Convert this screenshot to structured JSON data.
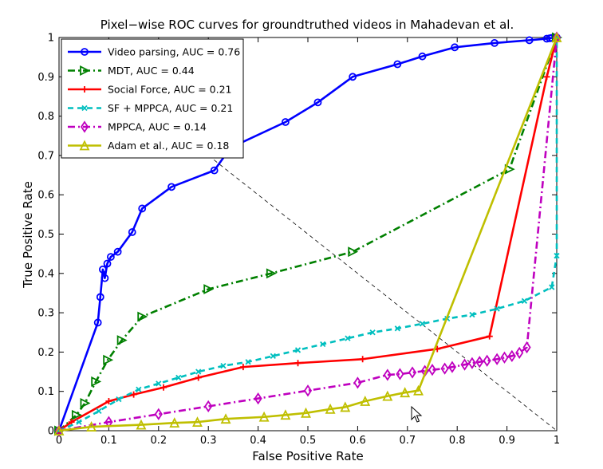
{
  "chart_data": {
    "type": "line",
    "title": "Pixel−wise ROC curves for groundtruthed videos in Mahadevan et al.",
    "xlabel": "False Positive Rate",
    "ylabel": "True Positive Rate",
    "xlim": [
      0,
      1
    ],
    "ylim": [
      0,
      1
    ],
    "xticks": [
      "0",
      "0.1",
      "0.2",
      "0.3",
      "0.4",
      "0.5",
      "0.6",
      "0.7",
      "0.8",
      "0.9",
      "1"
    ],
    "yticks": [
      "0",
      "0.1",
      "0.2",
      "0.3",
      "0.4",
      "0.5",
      "0.6",
      "0.7",
      "0.8",
      "0.9",
      "1"
    ],
    "grid": false,
    "legend_position": "top-left",
    "diagonal_reference": {
      "from": [
        0.3,
        0.7
      ],
      "to": [
        1.0,
        0.0
      ],
      "color": "#000000",
      "style": "dashed"
    },
    "series": [
      {
        "name": "Video parsing, AUC = 0.76",
        "color": "#0000ff",
        "style": "solid",
        "marker": "circle",
        "x": [
          0,
          0.078,
          0.083,
          0.088,
          0.092,
          0.097,
          0.104,
          0.118,
          0.147,
          0.167,
          0.226,
          0.312,
          0.345,
          0.455,
          0.52,
          0.59,
          0.68,
          0.73,
          0.795,
          0.875,
          0.945,
          0.98,
          0.986,
          0.99,
          1.0
        ],
        "y": [
          0,
          0.275,
          0.34,
          0.41,
          0.388,
          0.425,
          0.442,
          0.455,
          0.505,
          0.565,
          0.62,
          0.662,
          0.72,
          0.785,
          0.835,
          0.9,
          0.932,
          0.952,
          0.975,
          0.986,
          0.993,
          0.997,
          0.998,
          0.999,
          1.0
        ]
      },
      {
        "name": "MDT, AUC = 0.44",
        "color": "#008000",
        "style": "dashdot",
        "marker": "triangle-right",
        "x": [
          0,
          0.035,
          0.052,
          0.074,
          0.098,
          0.126,
          0.167,
          0.3,
          0.426,
          0.59,
          0.905,
          1.0
        ],
        "y": [
          0,
          0.04,
          0.07,
          0.125,
          0.18,
          0.23,
          0.29,
          0.36,
          0.4,
          0.455,
          0.665,
          1.0
        ]
      },
      {
        "name": "Social Force, AUC = 0.21",
        "color": "#ff0000",
        "style": "solid",
        "marker": "plus",
        "x": [
          0,
          0.025,
          0.1,
          0.15,
          0.21,
          0.28,
          0.37,
          0.48,
          0.61,
          0.76,
          0.865,
          0.98,
          1.0
        ],
        "y": [
          0,
          0.022,
          0.075,
          0.092,
          0.11,
          0.135,
          0.162,
          0.172,
          0.182,
          0.208,
          0.24,
          0.9,
          1.0
        ]
      },
      {
        "name": "SF + MPPCA, AUC = 0.21",
        "color": "#00bfbf",
        "style": "dashed",
        "marker": "x",
        "x": [
          0,
          0.04,
          0.08,
          0.12,
          0.16,
          0.2,
          0.24,
          0.28,
          0.33,
          0.38,
          0.43,
          0.48,
          0.53,
          0.58,
          0.63,
          0.68,
          0.73,
          0.78,
          0.83,
          0.88,
          0.935,
          0.99,
          1.0,
          1.0
        ],
        "y": [
          0,
          0.022,
          0.05,
          0.08,
          0.105,
          0.12,
          0.135,
          0.15,
          0.165,
          0.175,
          0.19,
          0.205,
          0.22,
          0.235,
          0.25,
          0.26,
          0.272,
          0.285,
          0.295,
          0.31,
          0.33,
          0.365,
          0.445,
          1.0
        ]
      },
      {
        "name": "MPPCA, AUC = 0.14",
        "color": "#bf00bf",
        "style": "dashdot",
        "marker": "diamond",
        "x": [
          0,
          0.1,
          0.2,
          0.3,
          0.4,
          0.5,
          0.6,
          0.66,
          0.685,
          0.71,
          0.735,
          0.75,
          0.775,
          0.79,
          0.815,
          0.83,
          0.845,
          0.86,
          0.88,
          0.895,
          0.91,
          0.925,
          0.94,
          1.0
        ],
        "y": [
          0,
          0.022,
          0.042,
          0.062,
          0.082,
          0.102,
          0.122,
          0.142,
          0.144,
          0.148,
          0.152,
          0.155,
          0.158,
          0.162,
          0.168,
          0.172,
          0.175,
          0.178,
          0.182,
          0.186,
          0.19,
          0.198,
          0.212,
          1.0
        ]
      },
      {
        "name": "Adam et al., AUC = 0.18",
        "color": "#bfbf00",
        "style": "solid",
        "marker": "triangle-up",
        "x": [
          0,
          0.065,
          0.165,
          0.232,
          0.278,
          0.335,
          0.412,
          0.455,
          0.496,
          0.545,
          0.575,
          0.615,
          0.66,
          0.695,
          0.722,
          1.0
        ],
        "y": [
          0,
          0.01,
          0.015,
          0.02,
          0.022,
          0.03,
          0.035,
          0.04,
          0.045,
          0.055,
          0.06,
          0.075,
          0.088,
          0.097,
          0.102,
          1.0
        ]
      }
    ]
  }
}
